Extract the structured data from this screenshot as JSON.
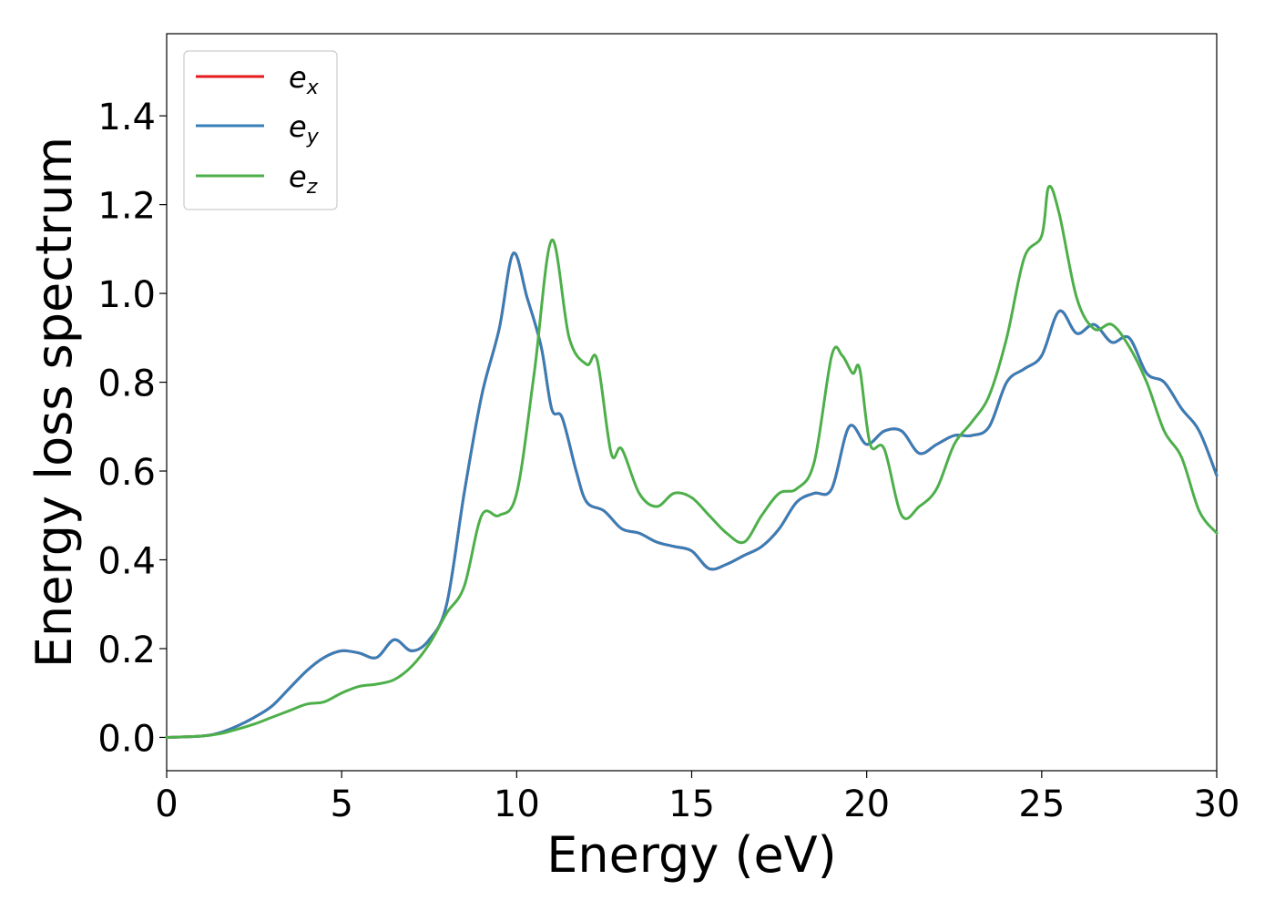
{
  "chart_data": {
    "type": "line",
    "xlabel": "Energy (eV)",
    "ylabel": "Energy loss spectrum",
    "xlim": [
      0,
      30
    ],
    "ylim": [
      -0.075,
      1.585
    ],
    "xticks": [
      0,
      5,
      10,
      15,
      20,
      25,
      30
    ],
    "xtick_labels": [
      "0",
      "5",
      "10",
      "15",
      "20",
      "25",
      "30"
    ],
    "yticks": [
      0.0,
      0.2,
      0.4,
      0.6,
      0.8,
      1.0,
      1.2,
      1.4
    ],
    "ytick_labels": [
      "0.0",
      "0.2",
      "0.4",
      "0.6",
      "0.8",
      "1.0",
      "1.2",
      "1.4"
    ],
    "grid": false,
    "legend_position": "top-left",
    "legend": [
      {
        "base": "e",
        "sub": "x"
      },
      {
        "base": "e",
        "sub": "y"
      },
      {
        "base": "e",
        "sub": "z"
      }
    ],
    "series": [
      {
        "legend_index": 0,
        "color": "#e41a1c",
        "x": [
          0,
          1,
          1.5,
          2,
          2.5,
          3,
          3.5,
          4,
          4.5,
          5,
          5.5,
          6,
          6.5,
          7,
          7.5,
          8,
          8.5,
          9,
          9.5,
          9.9,
          10.3,
          10.7,
          11,
          11.3,
          11.7,
          12,
          12.5,
          13,
          13.5,
          14,
          14.5,
          15,
          15.5,
          16,
          16.5,
          17,
          17.5,
          18,
          18.5,
          19,
          19.5,
          20,
          20.5,
          21,
          21.5,
          22,
          22.5,
          23,
          23.5,
          24,
          24.5,
          25,
          25.5,
          26,
          26.5,
          27,
          27.5,
          28,
          28.5,
          29,
          29.5,
          30
        ],
        "y": [
          0,
          0.003,
          0.01,
          0.025,
          0.045,
          0.07,
          0.11,
          0.15,
          0.18,
          0.195,
          0.19,
          0.18,
          0.22,
          0.195,
          0.22,
          0.3,
          0.55,
          0.77,
          0.92,
          1.09,
          0.99,
          0.88,
          0.74,
          0.72,
          0.6,
          0.53,
          0.51,
          0.47,
          0.46,
          0.44,
          0.43,
          0.42,
          0.38,
          0.39,
          0.41,
          0.43,
          0.47,
          0.53,
          0.55,
          0.56,
          0.7,
          0.66,
          0.69,
          0.69,
          0.64,
          0.66,
          0.68,
          0.68,
          0.7,
          0.8,
          0.83,
          0.86,
          0.96,
          0.91,
          0.93,
          0.89,
          0.9,
          0.82,
          0.8,
          0.74,
          0.69,
          0.59
        ]
      },
      {
        "legend_index": 1,
        "color": "#377eb8",
        "x": [
          0,
          1,
          1.5,
          2,
          2.5,
          3,
          3.5,
          4,
          4.5,
          5,
          5.5,
          6,
          6.5,
          7,
          7.5,
          8,
          8.5,
          9,
          9.5,
          9.9,
          10.3,
          10.7,
          11,
          11.3,
          11.7,
          12,
          12.5,
          13,
          13.5,
          14,
          14.5,
          15,
          15.5,
          16,
          16.5,
          17,
          17.5,
          18,
          18.5,
          19,
          19.5,
          20,
          20.5,
          21,
          21.5,
          22,
          22.5,
          23,
          23.5,
          24,
          24.5,
          25,
          25.5,
          26,
          26.5,
          27,
          27.5,
          28,
          28.5,
          29,
          29.5,
          30
        ],
        "y": [
          0,
          0.003,
          0.01,
          0.025,
          0.045,
          0.07,
          0.11,
          0.15,
          0.18,
          0.195,
          0.19,
          0.18,
          0.22,
          0.195,
          0.22,
          0.3,
          0.55,
          0.77,
          0.92,
          1.09,
          0.99,
          0.88,
          0.74,
          0.72,
          0.6,
          0.53,
          0.51,
          0.47,
          0.46,
          0.44,
          0.43,
          0.42,
          0.38,
          0.39,
          0.41,
          0.43,
          0.47,
          0.53,
          0.55,
          0.56,
          0.7,
          0.66,
          0.69,
          0.69,
          0.64,
          0.66,
          0.68,
          0.68,
          0.7,
          0.8,
          0.83,
          0.86,
          0.96,
          0.91,
          0.93,
          0.89,
          0.9,
          0.82,
          0.8,
          0.74,
          0.69,
          0.59
        ]
      },
      {
        "legend_index": 2,
        "color": "#4daf4a",
        "x": [
          0,
          1,
          1.5,
          2,
          2.5,
          3,
          3.5,
          4,
          4.5,
          5,
          5.5,
          6,
          6.5,
          7,
          7.5,
          8,
          8.5,
          9,
          9.5,
          10,
          10.5,
          11,
          11.5,
          12,
          12.3,
          12.7,
          13,
          13.5,
          14,
          14.5,
          15,
          15.5,
          16,
          16.5,
          17,
          17.5,
          18,
          18.5,
          19,
          19.3,
          19.6,
          19.8,
          20.1,
          20.5,
          21,
          21.5,
          22,
          22.5,
          23,
          23.5,
          24,
          24.5,
          25,
          25.2,
          25.5,
          26,
          26.5,
          27,
          27.5,
          28,
          28.5,
          29,
          29.5,
          30
        ],
        "y": [
          0,
          0.003,
          0.008,
          0.018,
          0.03,
          0.045,
          0.06,
          0.075,
          0.08,
          0.1,
          0.115,
          0.12,
          0.13,
          0.16,
          0.21,
          0.28,
          0.34,
          0.5,
          0.5,
          0.55,
          0.82,
          1.12,
          0.9,
          0.84,
          0.85,
          0.64,
          0.65,
          0.55,
          0.52,
          0.55,
          0.54,
          0.5,
          0.46,
          0.44,
          0.5,
          0.55,
          0.56,
          0.62,
          0.86,
          0.86,
          0.82,
          0.83,
          0.66,
          0.65,
          0.5,
          0.52,
          0.56,
          0.66,
          0.71,
          0.77,
          0.9,
          1.08,
          1.13,
          1.24,
          1.18,
          0.99,
          0.92,
          0.93,
          0.88,
          0.8,
          0.69,
          0.63,
          0.51,
          0.46
        ]
      }
    ]
  }
}
